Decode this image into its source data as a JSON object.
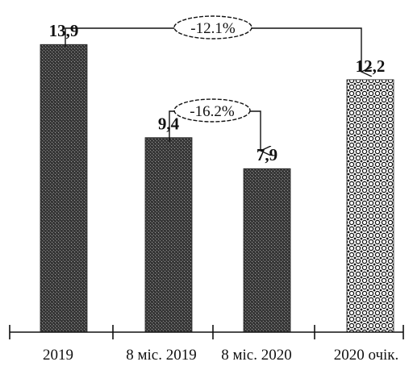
{
  "chart_data": {
    "type": "bar",
    "categories": [
      "2019",
      "8 міс. 2019",
      "8 міс. 2020",
      "2020 очік."
    ],
    "values": [
      13.9,
      9.4,
      7.9,
      12.2
    ],
    "value_labels": [
      "13,9",
      "9,4",
      "7,9",
      "12,2"
    ],
    "ylim": [
      0,
      15
    ],
    "grid": false,
    "bar_patterns": [
      "dark-stipple",
      "dark-stipple",
      "dark-stipple",
      "crosshatch-circles"
    ],
    "annotations": [
      {
        "label": "-12.1%",
        "from_category": "2019",
        "to_category": "2020 очік."
      },
      {
        "label": "-16.2%",
        "from_category": "8 міс. 2019",
        "to_category": "8 міс. 2020"
      }
    ]
  }
}
